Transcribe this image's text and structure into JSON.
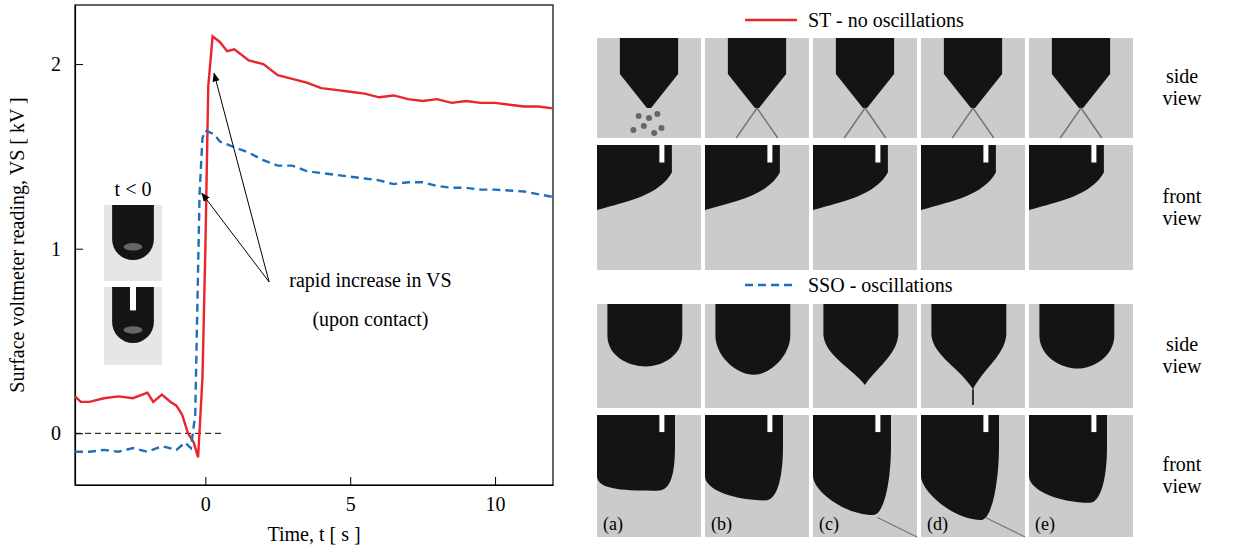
{
  "chart_data": {
    "type": "line",
    "x_label": "Time, t [ s ]",
    "y_label": "Surface voltmeter reading, VS [ kV ]",
    "xlim": [
      -4.5,
      12
    ],
    "xticks": [
      0,
      5,
      10
    ],
    "ylim": [
      -0.28,
      2.32
    ],
    "yticks": [
      0,
      1,
      2
    ],
    "series": [
      {
        "name": "ST - no oscillations",
        "color": "#e8262b",
        "line_style": "solid",
        "x": [
          -4.5,
          -4.3,
          -4,
          -3.5,
          -3,
          -2.5,
          -2,
          -1.8,
          -1.5,
          -1.2,
          -1,
          -0.8,
          -0.6,
          -0.4,
          -0.25,
          -0.1,
          0,
          0.1,
          0.25,
          0.5,
          0.75,
          1,
          1.5,
          2,
          2.5,
          3,
          3.5,
          4,
          4.5,
          5,
          5.5,
          6,
          6.5,
          7,
          7.5,
          8,
          8.5,
          9,
          9.5,
          10,
          10.5,
          11,
          11.5,
          12
        ],
        "values": [
          0.2,
          0.17,
          0.17,
          0.19,
          0.2,
          0.19,
          0.22,
          0.17,
          0.21,
          0.17,
          0.15,
          0.1,
          0,
          -0.05,
          -0.13,
          0.3,
          1.0,
          1.88,
          2.15,
          2.12,
          2.07,
          2.08,
          2.02,
          2.0,
          1.94,
          1.92,
          1.9,
          1.87,
          1.86,
          1.85,
          1.84,
          1.82,
          1.83,
          1.81,
          1.8,
          1.81,
          1.79,
          1.8,
          1.79,
          1.79,
          1.78,
          1.77,
          1.77,
          1.76
        ]
      },
      {
        "name": "SSO - oscillations",
        "color": "#1f6fbf",
        "line_style": "dashed",
        "x": [
          -4.5,
          -4,
          -3.5,
          -3,
          -2.5,
          -2,
          -1.5,
          -1,
          -0.7,
          -0.5,
          -0.35,
          -0.2,
          -0.1,
          0,
          0.3,
          0.5,
          1,
          1.5,
          2,
          2.5,
          3,
          3.5,
          4,
          4.5,
          5,
          5.5,
          6,
          6.5,
          7,
          7.5,
          8,
          8.5,
          9,
          9.5,
          10,
          11,
          12
        ],
        "values": [
          -0.1,
          -0.1,
          -0.09,
          -0.1,
          -0.08,
          -0.1,
          -0.07,
          -0.09,
          -0.05,
          -0.08,
          0.1,
          1.3,
          1.6,
          1.64,
          1.62,
          1.58,
          1.55,
          1.52,
          1.48,
          1.45,
          1.45,
          1.42,
          1.41,
          1.4,
          1.39,
          1.38,
          1.37,
          1.35,
          1.36,
          1.36,
          1.34,
          1.33,
          1.33,
          1.32,
          1.32,
          1.31,
          1.28
        ]
      }
    ],
    "reference_line": {
      "y": 0,
      "x": [
        -4.5,
        0.6
      ]
    },
    "annotations": [
      {
        "text": "rapid increase in VS",
        "x": 5.7,
        "y": 0.79
      },
      {
        "text": "(upon contact)",
        "x": 5.7,
        "y": 0.58
      }
    ],
    "arrows": [
      {
        "from": [
          2.2,
          0.82
        ],
        "to": [
          0.3,
          1.95
        ]
      },
      {
        "from": [
          2.2,
          0.82
        ],
        "to": [
          -0.12,
          1.3
        ]
      }
    ],
    "inset_label": "t < 0"
  },
  "image_panel": {
    "row_labels": [
      "side view",
      "front view"
    ],
    "frame_labels": [
      "(a)",
      "(b)",
      "(c)",
      "(d)",
      "(e)"
    ]
  }
}
